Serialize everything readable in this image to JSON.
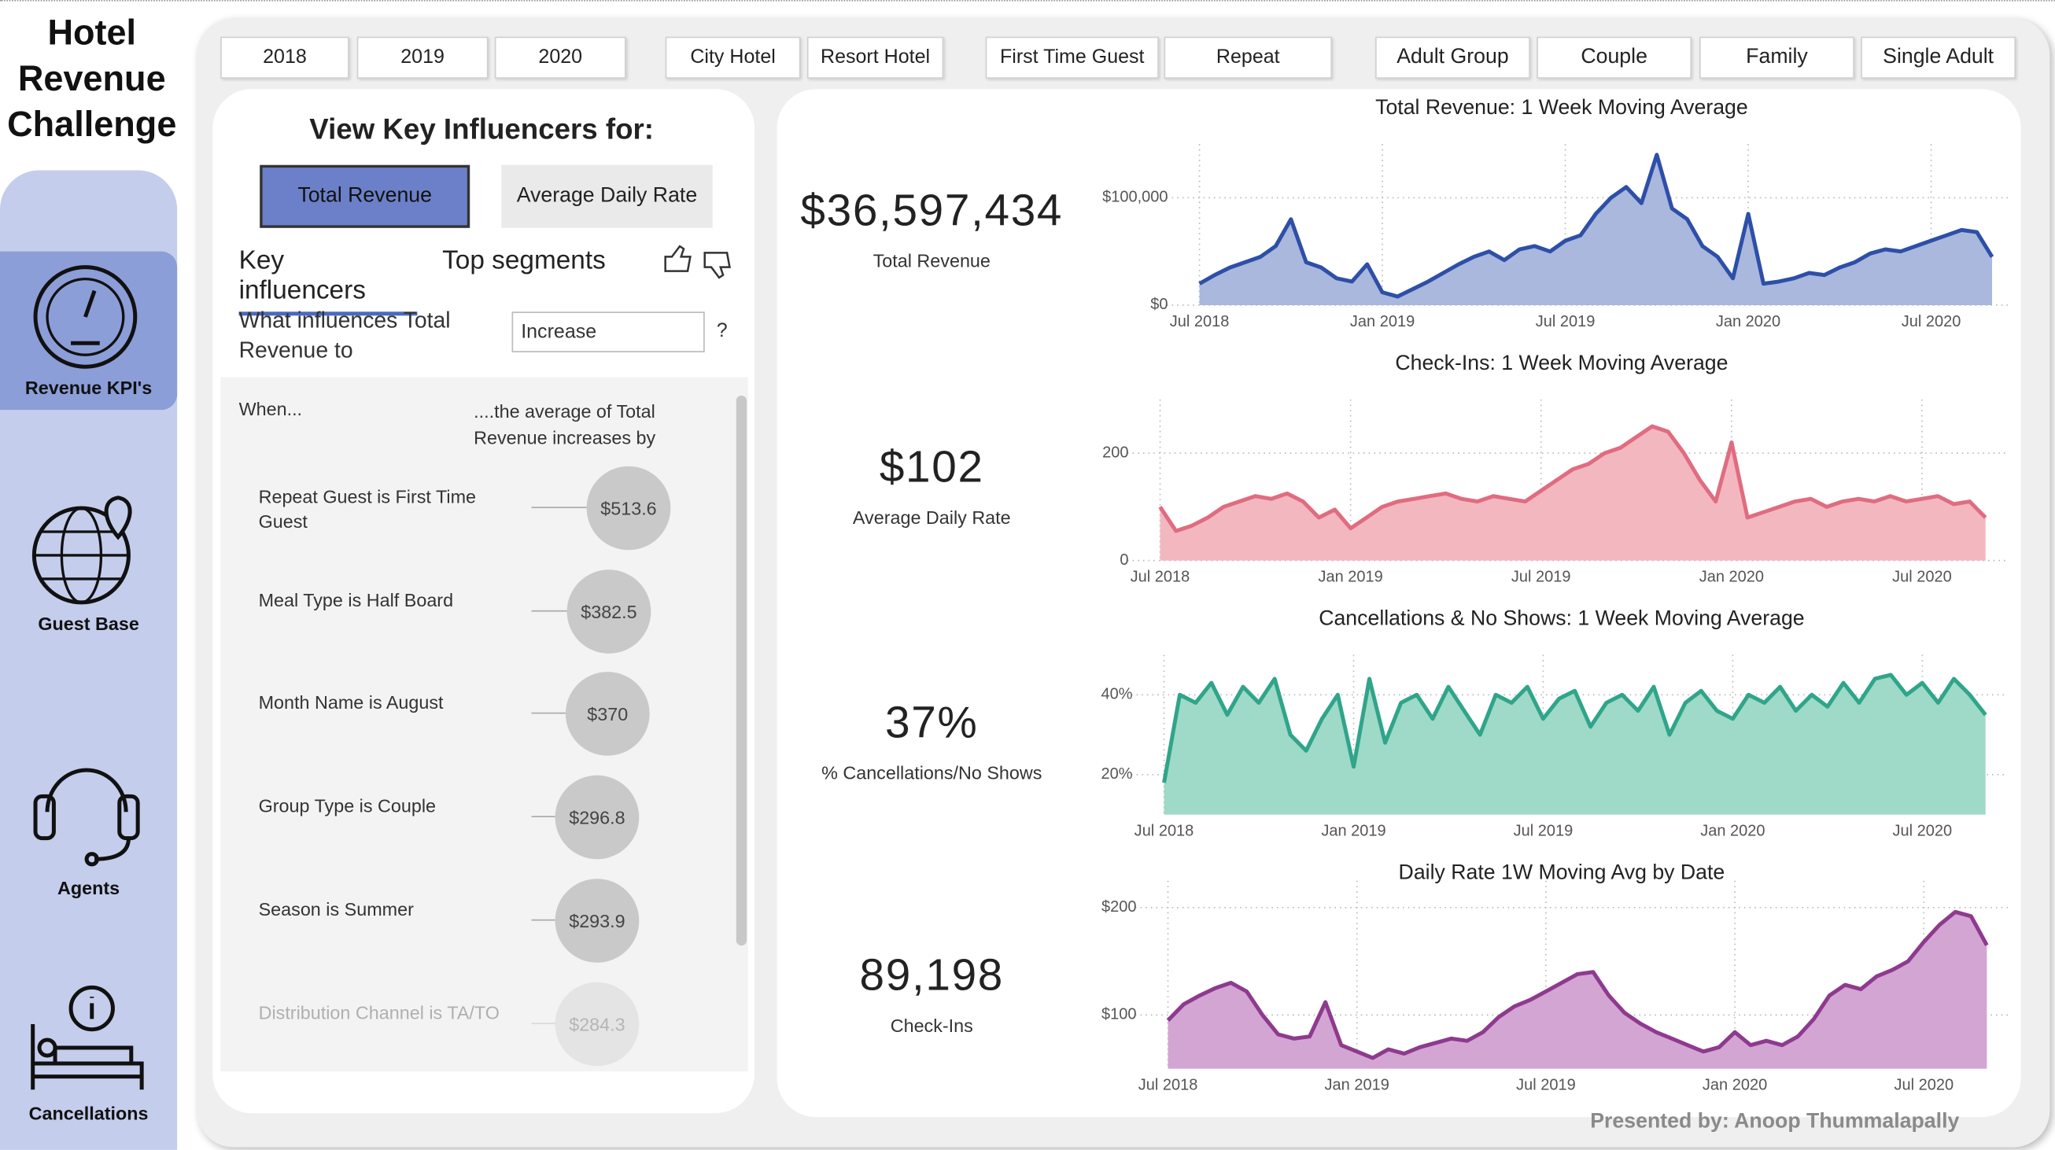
{
  "title": "Hotel Revenue Challenge",
  "nav": [
    "Revenue KPI's",
    "Guest Base",
    "Agents",
    "Cancellations"
  ],
  "filters": [
    "2018",
    "2019",
    "2020",
    "City Hotel",
    "Resort Hotel",
    "First Time Guest",
    "Repeat",
    "Adult Group",
    "Couple",
    "Family",
    "Single Adult"
  ],
  "key_influencers": {
    "heading": "View Key Influencers for:",
    "buttons": [
      "Total Revenue",
      "Average Daily Rate"
    ],
    "tabs": [
      "Key influencers",
      "Top segments"
    ],
    "question": "What influences Total Revenue to",
    "dropdown": "Increase",
    "help": "?",
    "column_left": "When...",
    "column_right": "....the average of Total Revenue increases by",
    "items": [
      {
        "label": "Repeat Guest is First Time Guest",
        "value": "$513.6"
      },
      {
        "label": "Meal Type is Half Board",
        "value": "$382.5"
      },
      {
        "label": "Month Name is August",
        "value": "$370"
      },
      {
        "label": "Group Type is Couple",
        "value": "$296.8"
      },
      {
        "label": "Season is Summer",
        "value": "$293.9"
      },
      {
        "label": "Distribution Channel is TA/TO",
        "value": "$284.3"
      }
    ]
  },
  "kpis": [
    {
      "value": "$36,597,434",
      "label": "Total Revenue"
    },
    {
      "value": "$102",
      "label": "Average Daily Rate"
    },
    {
      "value": "37%",
      "label": "% Cancellations/No Shows"
    },
    {
      "value": "89,198",
      "label": "Check-Ins"
    }
  ],
  "footer": "Presented by: Anoop Thummalapally",
  "chart_data": [
    {
      "type": "area",
      "title": "Total Revenue: 1 Week Moving Average",
      "color": "#2e4fa8",
      "fill_color": "#a9b8dc",
      "grid": true,
      "values": [
        20000,
        28000,
        35000,
        40000,
        45000,
        55000,
        80000,
        40000,
        35000,
        25000,
        22000,
        38000,
        12000,
        8000,
        15000,
        22000,
        30000,
        38000,
        45000,
        50000,
        42000,
        52000,
        55000,
        50000,
        60000,
        65000,
        85000,
        100000,
        110000,
        95000,
        140000,
        90000,
        80000,
        55000,
        45000,
        25000,
        85000,
        20000,
        22000,
        25000,
        30000,
        28000,
        35000,
        40000,
        48000,
        52000,
        50000,
        55000,
        60000,
        65000,
        70000,
        68000,
        45000
      ],
      "xlim": [
        0,
        52
      ],
      "xticks": [
        {
          "value": 0,
          "label": "Jul 2018"
        },
        {
          "value": 12,
          "label": "Jan 2019"
        },
        {
          "value": 24,
          "label": "Jul 2019"
        },
        {
          "value": 36,
          "label": "Jan 2020"
        },
        {
          "value": 48,
          "label": "Jul 2020"
        }
      ],
      "ylim": [
        0,
        150000
      ],
      "yticks": [
        {
          "value": 0,
          "label": "$0"
        },
        {
          "value": 100000,
          "label": "$100,000"
        }
      ]
    },
    {
      "type": "area",
      "title": "Check-Ins: 1 Week Moving Average",
      "color": "#e06c80",
      "fill_color": "#f3b7c0",
      "grid": true,
      "values": [
        100,
        55,
        65,
        80,
        100,
        110,
        120,
        115,
        125,
        110,
        80,
        95,
        60,
        80,
        100,
        110,
        115,
        120,
        125,
        115,
        110,
        120,
        115,
        110,
        130,
        150,
        170,
        180,
        200,
        210,
        230,
        250,
        240,
        200,
        150,
        110,
        220,
        80,
        90,
        100,
        110,
        115,
        100,
        110,
        115,
        110,
        120,
        110,
        115,
        120,
        105,
        110,
        80
      ],
      "xlim": [
        0,
        52
      ],
      "xticks": [
        {
          "value": 0,
          "label": "Jul 2018"
        },
        {
          "value": 12,
          "label": "Jan 2019"
        },
        {
          "value": 24,
          "label": "Jul 2019"
        },
        {
          "value": 36,
          "label": "Jan 2020"
        },
        {
          "value": 48,
          "label": "Jul 2020"
        }
      ],
      "ylim": [
        0,
        300
      ],
      "yticks": [
        0,
        200
      ]
    },
    {
      "type": "area",
      "title": "Cancellations & No Shows: 1 Week Moving Average",
      "color": "#2fa58a",
      "fill_color": "#9fd9c8",
      "grid": true,
      "values": [
        18,
        40,
        38,
        43,
        35,
        42,
        38,
        44,
        30,
        26,
        34,
        40,
        22,
        44,
        28,
        38,
        40,
        34,
        42,
        36,
        30,
        40,
        38,
        42,
        34,
        39,
        41,
        32,
        38,
        40,
        36,
        42,
        30,
        38,
        41,
        36,
        34,
        40,
        38,
        42,
        36,
        40,
        37,
        43,
        38,
        44,
        45,
        40,
        43,
        38,
        44,
        40,
        35
      ],
      "xlim": [
        0,
        52
      ],
      "xticks": [
        {
          "value": 0,
          "label": "Jul 2018"
        },
        {
          "value": 12,
          "label": "Jan 2019"
        },
        {
          "value": 24,
          "label": "Jul 2019"
        },
        {
          "value": 36,
          "label": "Jan 2020"
        },
        {
          "value": 48,
          "label": "Jul 2020"
        }
      ],
      "ylim": [
        10,
        50
      ],
      "yticks": [
        {
          "value": 20,
          "label": "20%"
        },
        {
          "value": 40,
          "label": "40%"
        }
      ]
    },
    {
      "type": "area",
      "title": "Daily Rate 1W Moving Avg by Date",
      "color": "#8e3a8e",
      "fill_color": "#d3a5d3",
      "grid": true,
      "values": [
        95,
        110,
        118,
        125,
        130,
        122,
        100,
        82,
        78,
        80,
        112,
        72,
        66,
        60,
        68,
        64,
        70,
        74,
        78,
        76,
        84,
        98,
        108,
        114,
        122,
        130,
        138,
        140,
        118,
        102,
        92,
        84,
        78,
        72,
        66,
        70,
        84,
        72,
        76,
        72,
        80,
        96,
        118,
        128,
        124,
        136,
        142,
        150,
        168,
        184,
        196,
        192,
        165
      ],
      "xlim": [
        0,
        52
      ],
      "xticks": [
        {
          "value": 0,
          "label": "Jul 2018"
        },
        {
          "value": 12,
          "label": "Jan 2019"
        },
        {
          "value": 24,
          "label": "Jul 2019"
        },
        {
          "value": 36,
          "label": "Jan 2020"
        },
        {
          "value": 48,
          "label": "Jul 2020"
        }
      ],
      "ylim": [
        50,
        225
      ],
      "yticks": [
        {
          "value": 100,
          "label": "$100"
        },
        {
          "value": 200,
          "label": "$200"
        }
      ]
    }
  ]
}
